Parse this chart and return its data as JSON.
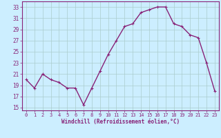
{
  "x": [
    0,
    1,
    2,
    3,
    4,
    5,
    6,
    7,
    8,
    9,
    10,
    11,
    12,
    13,
    14,
    15,
    16,
    17,
    18,
    19,
    20,
    21,
    22,
    23
  ],
  "y": [
    20,
    18.5,
    21,
    20,
    19.5,
    18.5,
    18.5,
    15.5,
    18.5,
    21.5,
    24.5,
    27,
    29.5,
    30,
    32,
    32.5,
    33,
    33,
    30,
    29.5,
    28,
    27.5,
    23,
    18
  ],
  "line_color": "#882277",
  "marker": "+",
  "marker_size": 3,
  "bg_color": "#cceeff",
  "grid_color": "#aacccc",
  "xlabel": "Windchill (Refroidissement éolien,°C)",
  "xlabel_color": "#882277",
  "ylim": [
    14.5,
    34
  ],
  "yticks": [
    15,
    17,
    19,
    21,
    23,
    25,
    27,
    29,
    31,
    33
  ],
  "xticks": [
    0,
    1,
    2,
    3,
    4,
    5,
    6,
    7,
    8,
    9,
    10,
    11,
    12,
    13,
    14,
    15,
    16,
    17,
    18,
    19,
    20,
    21,
    22,
    23
  ],
  "tick_color": "#882277",
  "spine_color": "#882277",
  "line_width": 1.0
}
